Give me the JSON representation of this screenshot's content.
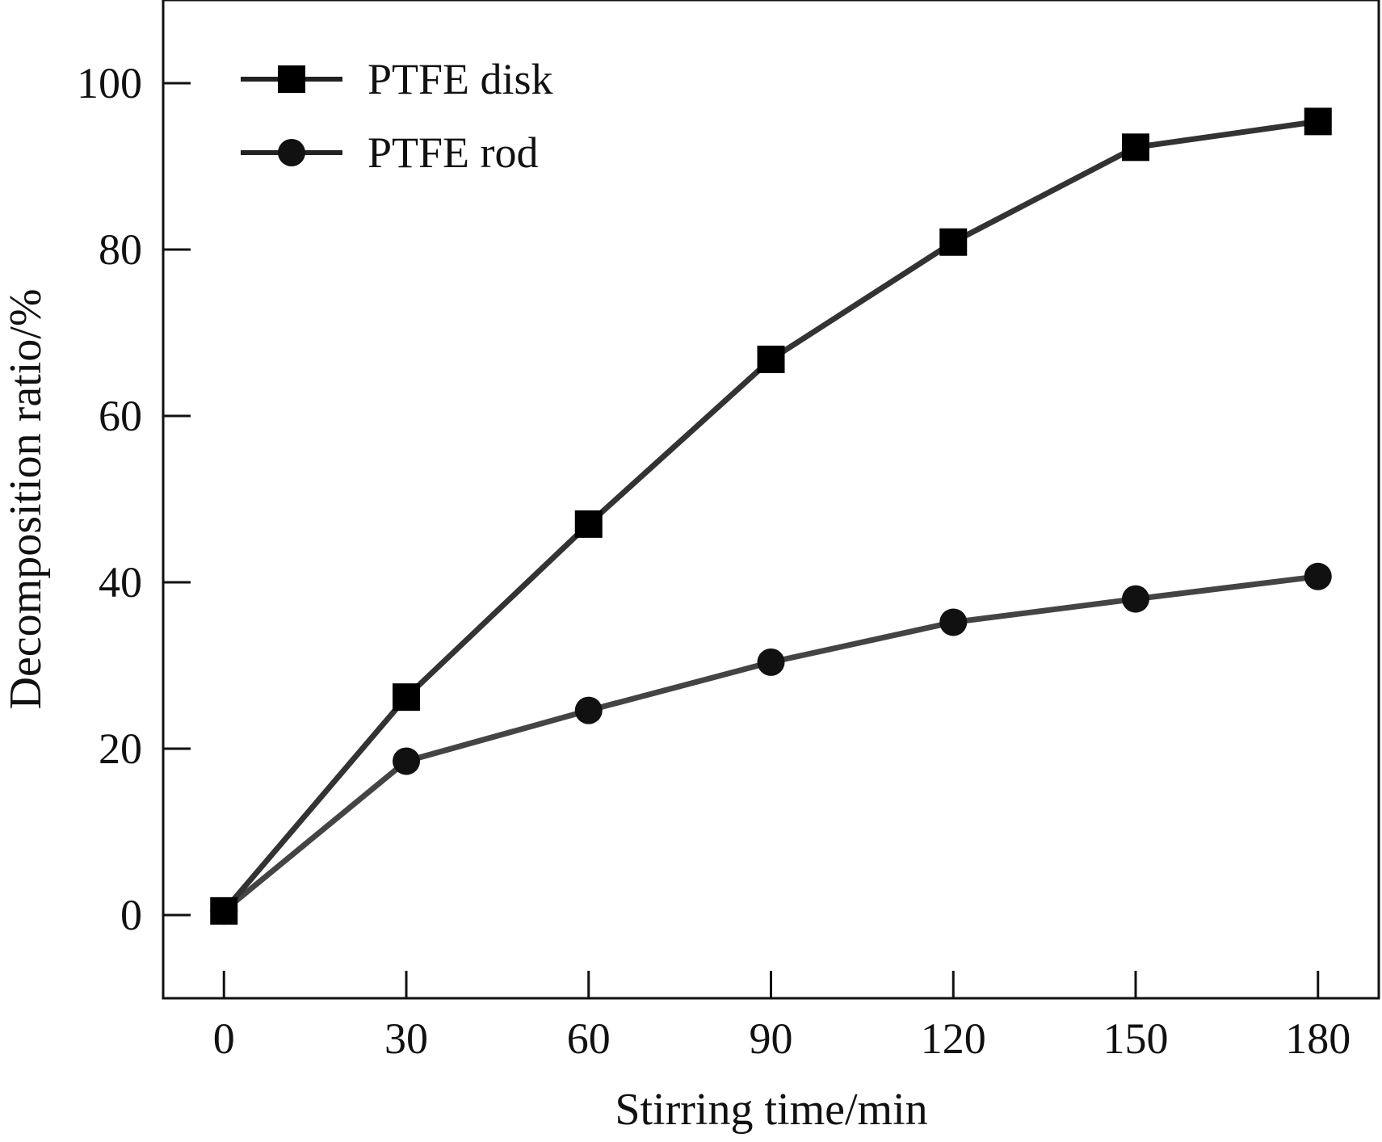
{
  "chart_data": {
    "type": "line",
    "xlabel": "Stirring time/min",
    "ylabel": "Decomposition ratio/%",
    "x": [
      0,
      30,
      60,
      90,
      120,
      150,
      180
    ],
    "xlim": [
      -10,
      190
    ],
    "ylim": [
      -10,
      110
    ],
    "xticks": [
      0,
      30,
      60,
      90,
      120,
      150,
      180
    ],
    "yticks": [
      0,
      20,
      40,
      60,
      80,
      100
    ],
    "grid": false,
    "legend_position": "top-left",
    "series": [
      {
        "name": "PTFE disk",
        "marker": "square",
        "color": "#333333",
        "values": [
          0.5,
          26.2,
          47.0,
          66.8,
          80.9,
          92.3,
          95.4
        ]
      },
      {
        "name": "PTFE rod",
        "marker": "circle",
        "color": "#444444",
        "values": [
          0.5,
          18.5,
          24.6,
          30.4,
          35.2,
          38.0,
          40.7
        ]
      }
    ]
  }
}
